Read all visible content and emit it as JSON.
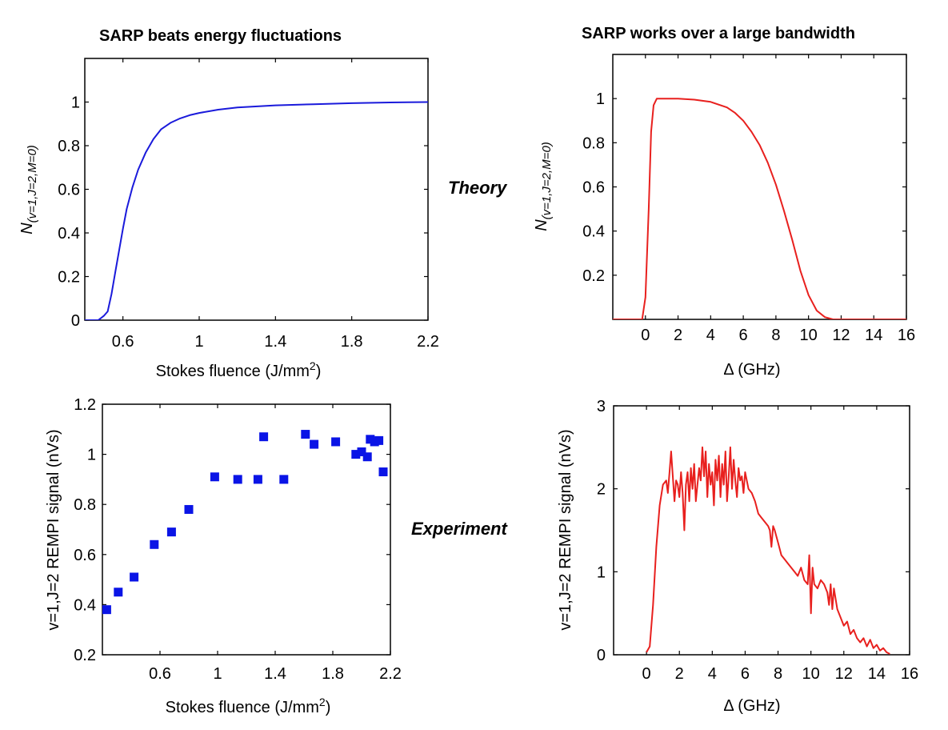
{
  "row_labels": {
    "theory": "Theory",
    "experiment": "Experiment"
  },
  "chart_data": [
    {
      "id": "theory_fluence",
      "type": "line",
      "title": "SARP beats energy fluctuations",
      "xlabel": "Stokes fluence (J/mm²)",
      "ylabel": "N(v=1,J=2,M=0)",
      "xlim": [
        0.4,
        2.2
      ],
      "ylim": [
        0,
        1.2
      ],
      "xticks": [
        0.6,
        1,
        1.4,
        1.8,
        2.2
      ],
      "xtick_labels": [
        "0.6",
        "1",
        "1.4",
        "1.8",
        "2.2"
      ],
      "yticks": [
        0,
        0.2,
        0.4,
        0.6,
        0.8,
        1
      ],
      "ytick_labels": [
        "0",
        "0.2",
        "0.4",
        "0.6",
        "0.8",
        "1"
      ],
      "grid": false,
      "series": [
        {
          "color": "#1a1adb",
          "x": [
            0.4,
            0.47,
            0.5,
            0.52,
            0.54,
            0.56,
            0.58,
            0.6,
            0.62,
            0.65,
            0.68,
            0.72,
            0.76,
            0.8,
            0.85,
            0.9,
            0.95,
            1.0,
            1.1,
            1.2,
            1.4,
            1.6,
            1.8,
            2.0,
            2.2
          ],
          "y": [
            0,
            0,
            0.02,
            0.04,
            0.12,
            0.22,
            0.32,
            0.42,
            0.51,
            0.61,
            0.69,
            0.77,
            0.83,
            0.875,
            0.905,
            0.925,
            0.94,
            0.95,
            0.965,
            0.975,
            0.985,
            0.99,
            0.995,
            0.998,
            1.0
          ]
        }
      ]
    },
    {
      "id": "theory_detuning",
      "type": "line",
      "title": "SARP works over a large bandwidth",
      "xlabel": "Δ (GHz)",
      "ylabel": "N(v=1,J=2,M=0)",
      "xlim": [
        -2,
        16
      ],
      "ylim": [
        0,
        1.2
      ],
      "xticks": [
        0,
        2,
        4,
        6,
        8,
        10,
        12,
        14,
        16
      ],
      "xtick_labels": [
        "0",
        "2",
        "4",
        "6",
        "8",
        "10",
        "12",
        "14",
        "16"
      ],
      "yticks": [
        0.2,
        0.4,
        0.6,
        0.8,
        1
      ],
      "ytick_labels": [
        "0.2",
        "0.4",
        "0.6",
        "0.8",
        "1"
      ],
      "grid": false,
      "series": [
        {
          "color": "#e8201e",
          "x": [
            -2,
            -0.2,
            0.0,
            0.2,
            0.35,
            0.5,
            0.7,
            1,
            2,
            3,
            4,
            5,
            5.5,
            6,
            6.5,
            7,
            7.5,
            8,
            8.5,
            9,
            9.5,
            10,
            10.5,
            11,
            11.5,
            12,
            16
          ],
          "y": [
            0,
            0,
            0.1,
            0.5,
            0.85,
            0.97,
            1.0,
            1.0,
            1.0,
            0.995,
            0.985,
            0.96,
            0.935,
            0.9,
            0.85,
            0.79,
            0.71,
            0.61,
            0.49,
            0.36,
            0.22,
            0.11,
            0.04,
            0.01,
            0.0,
            0,
            0
          ]
        }
      ]
    },
    {
      "id": "experiment_fluence",
      "type": "scatter",
      "title": "",
      "xlabel": "Stokes fluence (J/mm²)",
      "ylabel": "v=1,J=2 REMPI signal (nVs)",
      "xlim": [
        0.2,
        2.2
      ],
      "ylim": [
        0.2,
        1.2
      ],
      "xticks": [
        0.6,
        1,
        1.4,
        1.8,
        2.2
      ],
      "xtick_labels": [
        "0.6",
        "1",
        "1.4",
        "1.8",
        "2.2"
      ],
      "yticks": [
        0.2,
        0.4,
        0.6,
        0.8,
        1,
        1.2
      ],
      "ytick_labels": [
        "0.2",
        "0.4",
        "0.6",
        "0.8",
        "1",
        "1.2"
      ],
      "grid": false,
      "series": [
        {
          "color": "#0a14e6",
          "x": [
            0.23,
            0.31,
            0.42,
            0.56,
            0.68,
            0.8,
            0.98,
            1.14,
            1.28,
            1.32,
            1.46,
            1.61,
            1.67,
            1.82,
            1.96,
            2.0,
            2.04,
            2.06,
            2.09,
            2.12,
            2.15
          ],
          "y": [
            0.38,
            0.45,
            0.51,
            0.64,
            0.69,
            0.78,
            0.91,
            0.9,
            0.9,
            1.07,
            0.9,
            1.08,
            1.04,
            1.05,
            1.0,
            1.01,
            0.99,
            1.06,
            1.05,
            1.055,
            0.93
          ]
        }
      ]
    },
    {
      "id": "experiment_detuning",
      "type": "line",
      "title": "",
      "xlabel": "Δ (GHz)",
      "ylabel": "v=1,J=2 REMPI signal (nVs)",
      "xlim": [
        -2,
        16
      ],
      "ylim": [
        0,
        3
      ],
      "xticks": [
        0,
        2,
        4,
        6,
        8,
        10,
        12,
        14,
        16
      ],
      "xtick_labels": [
        "0",
        "2",
        "4",
        "6",
        "8",
        "10",
        "12",
        "14",
        "16"
      ],
      "yticks": [
        0,
        1,
        2,
        3
      ],
      "ytick_labels": [
        "0",
        "1",
        "2",
        "3"
      ],
      "grid": false,
      "series": [
        {
          "color": "#e8201e",
          "x": [
            0.0,
            0.2,
            0.4,
            0.6,
            0.8,
            1.0,
            1.2,
            1.3,
            1.4,
            1.5,
            1.6,
            1.7,
            1.8,
            1.9,
            2.0,
            2.1,
            2.2,
            2.3,
            2.4,
            2.5,
            2.6,
            2.7,
            2.8,
            2.9,
            3.0,
            3.1,
            3.2,
            3.3,
            3.4,
            3.5,
            3.6,
            3.7,
            3.8,
            3.9,
            4.0,
            4.1,
            4.2,
            4.3,
            4.4,
            4.5,
            4.6,
            4.7,
            4.8,
            4.9,
            5.0,
            5.1,
            5.2,
            5.3,
            5.4,
            5.5,
            5.6,
            5.7,
            5.8,
            5.9,
            6.0,
            6.1,
            6.2,
            6.4,
            6.6,
            6.8,
            7.0,
            7.2,
            7.4,
            7.5,
            7.6,
            7.7,
            7.8,
            8.0,
            8.2,
            8.4,
            8.6,
            8.8,
            9.0,
            9.2,
            9.4,
            9.6,
            9.8,
            9.9,
            10.0,
            10.1,
            10.2,
            10.4,
            10.6,
            10.8,
            11.0,
            11.1,
            11.2,
            11.3,
            11.4,
            11.6,
            11.8,
            12.0,
            12.2,
            12.4,
            12.6,
            12.8,
            13.0,
            13.2,
            13.4,
            13.6,
            13.8,
            14.0,
            14.2,
            14.4,
            14.6,
            14.8
          ],
          "y": [
            0.03,
            0.1,
            0.6,
            1.3,
            1.8,
            2.05,
            2.1,
            1.95,
            2.2,
            2.45,
            2.15,
            1.85,
            2.1,
            2.05,
            1.9,
            2.2,
            1.95,
            1.5,
            2.05,
            2.2,
            1.85,
            2.25,
            2.0,
            2.3,
            1.85,
            2.05,
            2.25,
            2.1,
            2.5,
            2.15,
            2.45,
            1.9,
            2.3,
            2.05,
            2.2,
            1.8,
            2.35,
            2.1,
            2.4,
            1.9,
            2.3,
            2.05,
            2.45,
            1.85,
            2.15,
            2.5,
            2.0,
            2.35,
            2.1,
            1.9,
            2.25,
            2.1,
            2.15,
            1.95,
            2.2,
            2.1,
            2.0,
            1.95,
            1.85,
            1.7,
            1.65,
            1.6,
            1.55,
            1.5,
            1.3,
            1.55,
            1.5,
            1.35,
            1.2,
            1.15,
            1.1,
            1.05,
            1.0,
            0.95,
            1.05,
            0.9,
            0.85,
            1.2,
            0.5,
            1.05,
            0.85,
            0.8,
            0.9,
            0.85,
            0.75,
            0.6,
            0.85,
            0.55,
            0.8,
            0.55,
            0.45,
            0.35,
            0.4,
            0.25,
            0.3,
            0.2,
            0.15,
            0.2,
            0.1,
            0.18,
            0.08,
            0.12,
            0.05,
            0.08,
            0.03,
            0.01
          ]
        }
      ]
    }
  ]
}
